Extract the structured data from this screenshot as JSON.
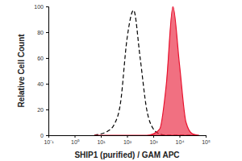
{
  "chart_data": {
    "type": "line",
    "x_label": "SHIP1 (purified) / GAM APC",
    "y_label": "Relative Cell Count",
    "log": "x",
    "x": [
      5.62,
      10,
      17.78,
      31.62,
      56.23,
      100,
      177.8,
      316.2,
      562.3,
      1000,
      1778,
      3162,
      5623,
      10000,
      17783,
      31623,
      56234
    ],
    "series": [
      {
        "type": "line",
        "line_style": "dashed",
        "color": "#000000",
        "values": [
          0,
          1,
          3,
          8,
          25,
          75,
          97,
          60,
          20,
          5,
          1,
          0,
          0,
          0,
          0,
          0,
          0
        ]
      },
      {
        "type": "area",
        "line_style": "solid",
        "color": "#e8112d",
        "values": [
          0,
          0,
          0,
          0,
          0,
          0,
          0,
          0,
          0,
          1,
          5,
          40,
          100,
          55,
          10,
          1,
          0
        ]
      }
    ],
    "xlim": [
      0.1,
      100000
    ],
    "xticks": [
      {
        "value": 0.1,
        "label": "10⁻¹"
      },
      {
        "value": 1,
        "label": "10⁰"
      },
      {
        "value": 10,
        "label": "10¹"
      },
      {
        "value": 100,
        "label": "10²"
      },
      {
        "value": 1000,
        "label": "10³"
      },
      {
        "value": 10000,
        "label": "10⁴"
      },
      {
        "value": 100000,
        "label": "10⁵"
      }
    ],
    "ylim": [
      0,
      100
    ],
    "yticks": [
      0,
      20,
      40,
      60,
      80,
      100
    ],
    "grid": false
  }
}
